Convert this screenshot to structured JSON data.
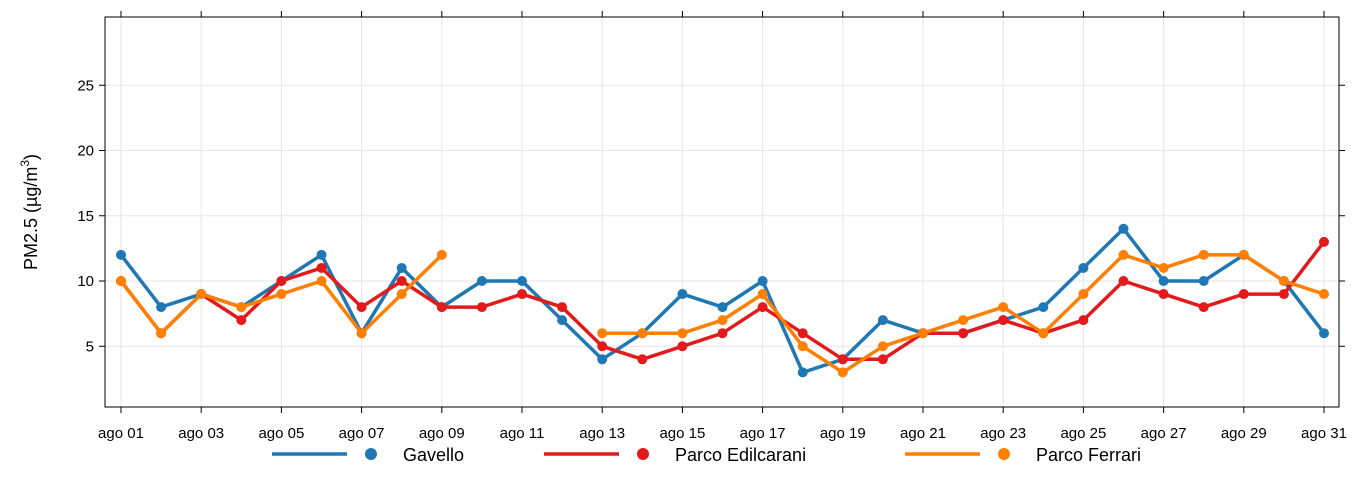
{
  "chart_data": {
    "type": "line",
    "title": "",
    "ylabel": {
      "prefix": "PM2.5 (",
      "mu": "µ",
      "unit": "g/m",
      "sup": "3",
      "suffix": ")"
    },
    "xlabel": "",
    "ylim": [
      0,
      30
    ],
    "yticks": [
      5,
      10,
      15,
      20,
      25
    ],
    "x_range": [
      "ago 01",
      "ago 31"
    ],
    "x_ticks": [
      "ago 01",
      "ago 03",
      "ago 05",
      "ago 07",
      "ago 09",
      "ago 11",
      "ago 13",
      "ago 15",
      "ago 17",
      "ago 19",
      "ago 21",
      "ago 23",
      "ago 25",
      "ago 27",
      "ago 29",
      "ago 31"
    ],
    "grid": true,
    "legend_position": "bottom",
    "series": [
      {
        "name": "Gavello",
        "color": "#1f78b4",
        "values": [
          12,
          8,
          9,
          8,
          10,
          12,
          6,
          11,
          8,
          10,
          10,
          7,
          4,
          6,
          9,
          8,
          10,
          3,
          4,
          7,
          6,
          6,
          7,
          8,
          11,
          14,
          10,
          10,
          12,
          10,
          6
        ]
      },
      {
        "name": "Parco Edilcarani",
        "color": "#e31a1c",
        "values": [
          10,
          6,
          9,
          7,
          10,
          11,
          8,
          10,
          8,
          8,
          9,
          8,
          5,
          4,
          5,
          6,
          8,
          6,
          4,
          4,
          6,
          6,
          7,
          6,
          7,
          10,
          9,
          8,
          9,
          9,
          13
        ]
      },
      {
        "name": "Parco Ferrari",
        "color": "#ff7f00",
        "values": [
          10,
          6,
          9,
          8,
          9,
          10,
          6,
          9,
          12,
          null,
          null,
          null,
          6,
          6,
          6,
          7,
          9,
          5,
          3,
          5,
          6,
          7,
          8,
          6,
          9,
          12,
          11,
          12,
          12,
          10,
          9
        ]
      }
    ]
  }
}
